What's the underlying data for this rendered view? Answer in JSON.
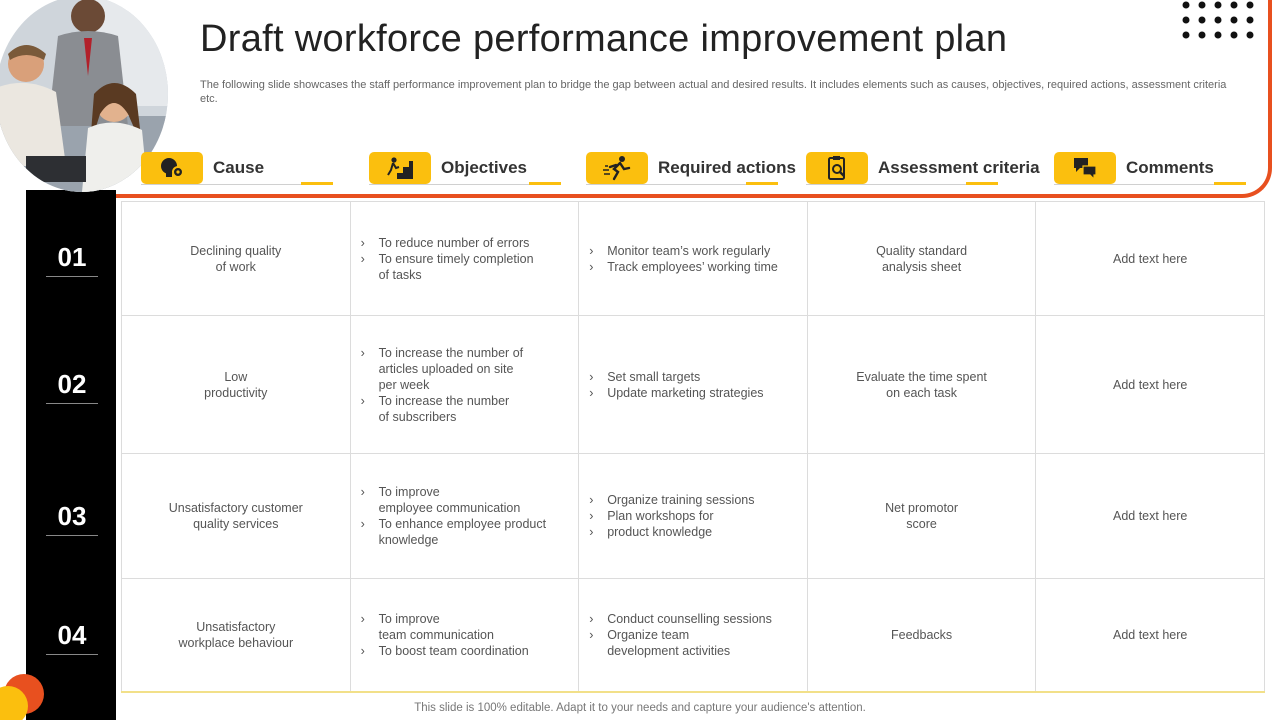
{
  "title": "Draft workforce performance improvement plan",
  "subtitle": "The following slide showcases the staff performance improvement plan to bridge the gap between actual and desired results. It includes elements such as causes, objectives, required actions, assessment criteria etc.",
  "colors": {
    "accent": "#fbbf0e",
    "frame": "#e8501f",
    "bar": "#000000"
  },
  "headers": [
    {
      "label": "Cause",
      "icon": "lightbulb-gear-icon"
    },
    {
      "label": "Objectives",
      "icon": "climbing-stairs-icon"
    },
    {
      "label": "Required actions",
      "icon": "running-person-icon"
    },
    {
      "label": "Assessment  criteria",
      "icon": "clipboard-magnifier-icon"
    },
    {
      "label": "Comments",
      "icon": "chat-bubbles-icon"
    }
  ],
  "rows": [
    {
      "number": "01",
      "cause": [
        "Declining quality",
        "of work"
      ],
      "objectives": [
        [
          "To reduce number of errors"
        ],
        [
          "To ensure timely completion",
          "of tasks"
        ]
      ],
      "actions": [
        [
          "Monitor team’s work regularly"
        ],
        [
          "Track employees’ working time"
        ]
      ],
      "assessment": [
        "Quality standard",
        "analysis sheet"
      ],
      "comment": "Add text here"
    },
    {
      "number": "02",
      "cause": [
        "Low",
        "productivity"
      ],
      "objectives": [
        [
          "To increase the number of",
          "articles uploaded on site",
          "per week"
        ],
        [
          "To increase the number",
          "of subscribers"
        ]
      ],
      "actions": [
        [
          "Set small targets"
        ],
        [
          "Update marketing strategies"
        ]
      ],
      "assessment": [
        "Evaluate  the time spent",
        "on each task"
      ],
      "comment": "Add text here"
    },
    {
      "number": "03",
      "cause": [
        "Unsatisfactory customer",
        "quality services"
      ],
      "objectives": [
        [
          "To improve",
          "employee communication"
        ],
        [
          "To enhance employee product",
          "knowledge"
        ]
      ],
      "actions": [
        [
          "Organize training sessions"
        ],
        [
          "Plan workshops for"
        ],
        [
          "product knowledge"
        ]
      ],
      "assessment": [
        "Net promotor",
        "score"
      ],
      "comment": "Add text here"
    },
    {
      "number": "04",
      "cause": [
        "Unsatisfactory",
        "workplace behaviour"
      ],
      "objectives": [
        [
          "To improve",
          "team communication"
        ],
        [
          "To boost team coordination"
        ]
      ],
      "actions": [
        [
          "Conduct counselling sessions"
        ],
        [
          "Organize team",
          "development  activities"
        ]
      ],
      "assessment": [
        "Feedbacks"
      ],
      "comment": "Add text here"
    }
  ],
  "footer": "This slide is 100% editable. Adapt it to your needs and capture your audience's attention."
}
